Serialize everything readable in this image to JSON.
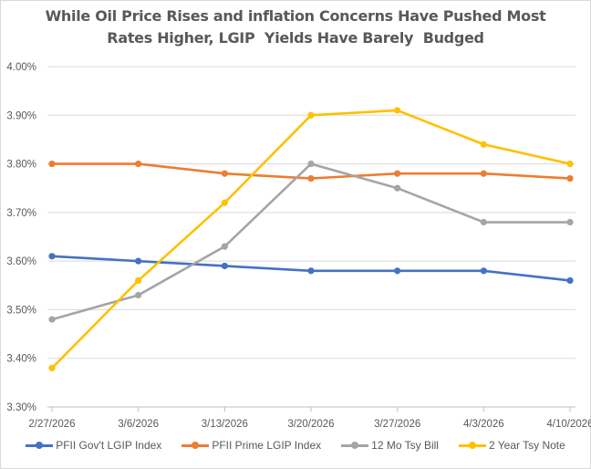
{
  "chart_data": {
    "type": "line",
    "title": [
      "While Oil Price Rises and inflation Concerns Have Pushed Most",
      "Rates Higher, LGIP  Yields Have Barely  Budged"
    ],
    "xlabel": "",
    "ylabel": "",
    "categories": [
      "2/27/2026",
      "3/6/2026",
      "3/13/2026",
      "3/20/2026",
      "3/27/2026",
      "4/3/2026",
      "4/10/2026"
    ],
    "ylim": [
      3.3,
      4.0
    ],
    "yticks": [
      3.3,
      3.4,
      3.5,
      3.6,
      3.7,
      3.8,
      3.9,
      4.0
    ],
    "ytick_labels": [
      "3.30%",
      "3.40%",
      "3.50%",
      "3.60%",
      "3.70%",
      "3.80%",
      "3.90%",
      "4.00%"
    ],
    "grid": true,
    "legend_position": "bottom",
    "series": [
      {
        "name": "PFII Gov't LGIP Index",
        "color": "#4472c4",
        "values": [
          3.61,
          3.6,
          3.59,
          3.58,
          3.58,
          3.58,
          3.56
        ]
      },
      {
        "name": "PFII Prime LGIP Index",
        "color": "#ed7d31",
        "values": [
          3.8,
          3.8,
          3.78,
          3.77,
          3.78,
          3.78,
          3.77
        ]
      },
      {
        "name": "12 Mo Tsy Bill",
        "color": "#a5a5a5",
        "values": [
          3.48,
          3.53,
          3.63,
          3.8,
          3.75,
          3.68,
          3.68
        ]
      },
      {
        "name": "2 Year Tsy Note",
        "color": "#ffc000",
        "values": [
          3.38,
          3.56,
          3.72,
          3.9,
          3.91,
          3.84,
          3.8
        ]
      }
    ]
  }
}
